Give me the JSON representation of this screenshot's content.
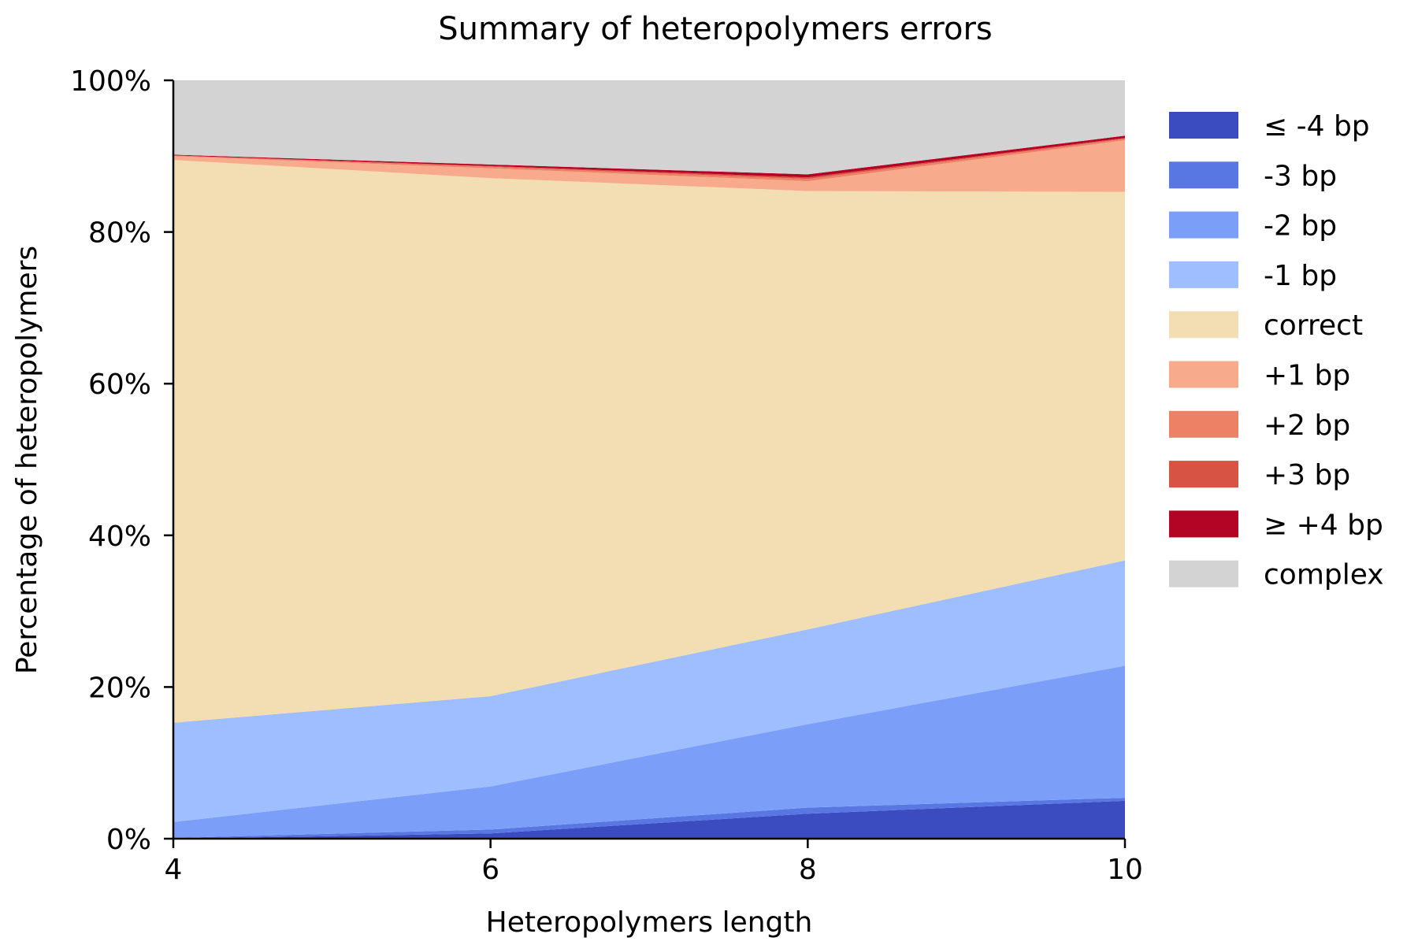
{
  "chart_data": {
    "type": "area",
    "stacked": true,
    "title": "Summary of heteropolymers errors",
    "xlabel": "Heteropolymers length",
    "ylabel": "Percentage of heteropolymers",
    "x": [
      4,
      6,
      8,
      10
    ],
    "xlim": [
      4,
      10
    ],
    "ylim": [
      0,
      100
    ],
    "x_ticks": [
      "4",
      "6",
      "8",
      "10"
    ],
    "y_ticks": [
      "0%",
      "20%",
      "40%",
      "60%",
      "80%",
      "100%"
    ],
    "grid": false,
    "legend_position": "right",
    "series": [
      {
        "name": "≤ -4 bp",
        "color": "#3b4cc0",
        "values": [
          0.0,
          0.7,
          3.3,
          5.0
        ]
      },
      {
        "name": "-3 bp",
        "color": "#5977e3",
        "values": [
          0.1,
          0.5,
          0.8,
          0.4
        ]
      },
      {
        "name": "-2 bp",
        "color": "#7b9ff9",
        "values": [
          2.1,
          5.7,
          11.0,
          17.4
        ]
      },
      {
        "name": "-1 bp",
        "color": "#9ebeff",
        "values": [
          13.1,
          11.9,
          12.5,
          13.9
        ]
      },
      {
        "name": "correct",
        "color": "#f3ddb3",
        "values": [
          74.2,
          68.3,
          57.8,
          48.6
        ]
      },
      {
        "name": "+1 bp",
        "color": "#f7aa8c",
        "values": [
          0.5,
          1.3,
          1.3,
          6.8
        ]
      },
      {
        "name": "+2 bp",
        "color": "#ec8165",
        "values": [
          0.1,
          0.2,
          0.3,
          0.2
        ]
      },
      {
        "name": "+3 bp",
        "color": "#d75445",
        "values": [
          0.0,
          0.1,
          0.2,
          0.1
        ]
      },
      {
        "name": "≥ +4 bp",
        "color": "#b40426",
        "values": [
          0.1,
          0.2,
          0.4,
          0.3
        ]
      },
      {
        "name": "complex",
        "color": "#d3d3d3",
        "values": [
          9.8,
          11.1,
          12.4,
          7.3
        ]
      }
    ]
  }
}
